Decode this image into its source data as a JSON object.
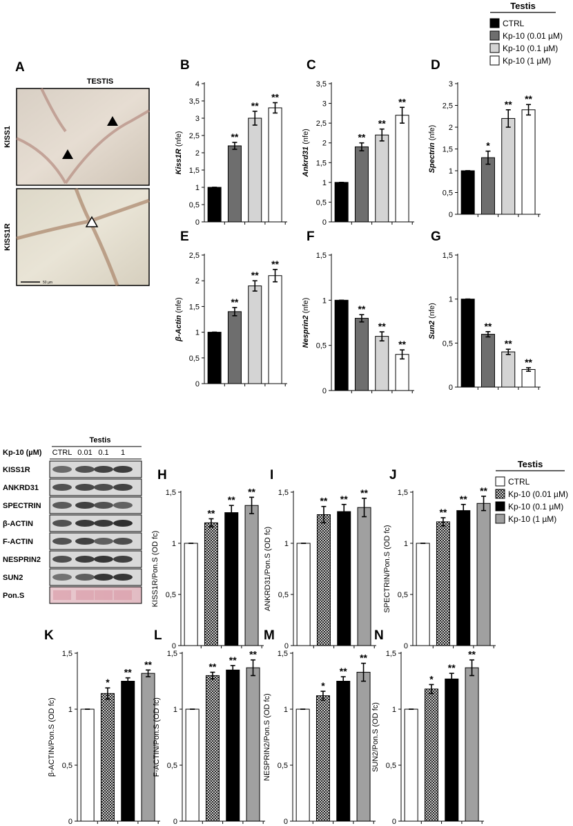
{
  "legend_top": {
    "title": "Testis",
    "entries": [
      {
        "label": "CTRL",
        "color": "#000000"
      },
      {
        "label": "Kp-10 (0.01 µM)",
        "color": "#6e6e6e"
      },
      {
        "label": "Kp-10 (0.1 µM)",
        "color": "#d4d4d4"
      },
      {
        "label": "Kp-10 (1 µM)",
        "color": "#ffffff"
      }
    ]
  },
  "legend_bottom": {
    "title": "Testis",
    "entries": [
      {
        "label": "CTRL",
        "color": "#ffffff",
        "pattern": "none"
      },
      {
        "label": "Kp-10 (0.01 µM)",
        "color": "#ffffff",
        "pattern": "crosshatch"
      },
      {
        "label": "Kp-10 (0.1 µM)",
        "color": "#000000",
        "pattern": "none"
      },
      {
        "label": "Kp-10 (1 µM)",
        "color": "#a0a0a0",
        "pattern": "none"
      }
    ]
  },
  "histology": {
    "letter": "A",
    "title": "TESTIS",
    "row_labels": [
      "KISS1",
      "KISS1R"
    ],
    "scale_text": "50 µm"
  },
  "western_blot": {
    "header": "Testis",
    "treatment_label": "Kp-10 (µM)",
    "lanes": [
      "CTRL",
      "0.01",
      "0.1",
      "1"
    ],
    "rows": [
      "KISS1R",
      "ANKRD31",
      "SPECTRIN",
      "β-ACTIN",
      "F-ACTIN",
      "NESPRIN2",
      "SUN2",
      "Pon.S"
    ]
  },
  "chart_data": [
    {
      "letter": "B",
      "type": "bar",
      "ylabel": "Kiss1R (nfe)",
      "ylabel_italic": "Kiss1R",
      "ylabel_rest": " (nfe)",
      "yticks": [
        "0",
        "0,5",
        "1",
        "1,5",
        "2",
        "2,5",
        "3",
        "3,5",
        "4"
      ],
      "ylim": [
        0,
        4
      ],
      "values": [
        1,
        2.2,
        3.0,
        3.3
      ],
      "errors": [
        0,
        0.1,
        0.2,
        0.15
      ],
      "sig": [
        "",
        "**",
        "**",
        "**"
      ],
      "palette": "top"
    },
    {
      "letter": "C",
      "type": "bar",
      "ylabel": "Ankrd31 (nfe)",
      "ylabel_italic": "Ankrd31",
      "ylabel_rest": " (nfe)",
      "yticks": [
        "0",
        "0,5",
        "1",
        "1,5",
        "2",
        "2,5",
        "3",
        "3,5"
      ],
      "ylim": [
        0,
        3.5
      ],
      "values": [
        1,
        1.9,
        2.2,
        2.7
      ],
      "errors": [
        0,
        0.1,
        0.15,
        0.2
      ],
      "sig": [
        "",
        "**",
        "**",
        "**"
      ],
      "palette": "top"
    },
    {
      "letter": "D",
      "type": "bar",
      "ylabel": "Spectrin (nfe)",
      "ylabel_italic": "Spectrin",
      "ylabel_rest": " (nfe)",
      "yticks": [
        "0",
        "0,5",
        "1",
        "1,5",
        "2",
        "2,5",
        "3"
      ],
      "ylim": [
        0,
        3
      ],
      "values": [
        1,
        1.3,
        2.2,
        2.4
      ],
      "errors": [
        0,
        0.15,
        0.2,
        0.12
      ],
      "sig": [
        "",
        "*",
        "**",
        "**"
      ],
      "palette": "top"
    },
    {
      "letter": "E",
      "type": "bar",
      "ylabel": "β-Actin (nfe)",
      "ylabel_italic": "β-Actin",
      "ylabel_rest": " (nfe)",
      "yticks": [
        "0",
        "0,5",
        "1",
        "1,5",
        "2",
        "2,5"
      ],
      "ylim": [
        0,
        2.5
      ],
      "values": [
        1,
        1.4,
        1.9,
        2.1
      ],
      "errors": [
        0,
        0.08,
        0.1,
        0.12
      ],
      "sig": [
        "",
        "**",
        "**",
        "**"
      ],
      "palette": "top"
    },
    {
      "letter": "F",
      "type": "bar",
      "ylabel": "Nesprin2 (nfe)",
      "ylabel_italic": "Nesprin2",
      "ylabel_rest": " (nfe)",
      "yticks": [
        "0",
        "0,5",
        "1",
        "1,5"
      ],
      "ylim": [
        0,
        1.5
      ],
      "values": [
        1,
        0.8,
        0.6,
        0.4
      ],
      "errors": [
        0,
        0.04,
        0.05,
        0.05
      ],
      "sig": [
        "",
        "**",
        "**",
        "**"
      ],
      "palette": "top"
    },
    {
      "letter": "G",
      "type": "bar",
      "ylabel": "Sun2 (nfe)",
      "ylabel_italic": "Sun2",
      "ylabel_rest": " (nfe)",
      "yticks": [
        "0",
        "0,5",
        "1",
        "1,5"
      ],
      "ylim": [
        0,
        1.5
      ],
      "values": [
        1,
        0.6,
        0.4,
        0.2
      ],
      "errors": [
        0,
        0.03,
        0.03,
        0.02
      ],
      "sig": [
        "",
        "**",
        "**",
        "**"
      ],
      "palette": "top"
    },
    {
      "letter": "H",
      "type": "bar",
      "ylabel": "KISS1R/Pon.S (OD fc)",
      "ylabel_italic": "",
      "ylabel_rest": "KISS1R/Pon.S (OD fc)",
      "yticks": [
        "0",
        "0,5",
        "1",
        "1,5"
      ],
      "ylim": [
        0,
        1.5
      ],
      "values": [
        1,
        1.2,
        1.3,
        1.37
      ],
      "errors": [
        0,
        0.04,
        0.07,
        0.08
      ],
      "sig": [
        "",
        "**",
        "**",
        "**"
      ],
      "palette": "bottom"
    },
    {
      "letter": "I",
      "type": "bar",
      "ylabel": "ANKRD31/Pon.S (OD fc)",
      "ylabel_italic": "",
      "ylabel_rest": "ANKRD31/Pon.S (OD fc)",
      "yticks": [
        "0",
        "0,5",
        "1",
        "1,5"
      ],
      "ylim": [
        0,
        1.5
      ],
      "values": [
        1,
        1.28,
        1.31,
        1.35
      ],
      "errors": [
        0,
        0.08,
        0.07,
        0.09
      ],
      "sig": [
        "",
        "**",
        "**",
        "**"
      ],
      "palette": "bottom"
    },
    {
      "letter": "J",
      "type": "bar",
      "ylabel": "SPECTRIN/Pon.S (OD fc)",
      "ylabel_italic": "",
      "ylabel_rest": "SPECTRIN/Pon.S (OD fc)",
      "yticks": [
        "0",
        "0,5",
        "1",
        "1,5"
      ],
      "ylim": [
        0,
        1.5
      ],
      "values": [
        1,
        1.21,
        1.32,
        1.39
      ],
      "errors": [
        0,
        0.04,
        0.06,
        0.07
      ],
      "sig": [
        "",
        "**",
        "**",
        "**"
      ],
      "palette": "bottom"
    },
    {
      "letter": "K",
      "type": "bar",
      "ylabel": "β-ACTIN/Pon.S (OD fc)",
      "ylabel_italic": "",
      "ylabel_rest": "β-ACTIN/Pon.S (OD fc)",
      "yticks": [
        "0",
        "0,5",
        "1",
        "1,5"
      ],
      "ylim": [
        0,
        1.5
      ],
      "values": [
        1,
        1.14,
        1.25,
        1.32
      ],
      "errors": [
        0,
        0.05,
        0.03,
        0.03
      ],
      "sig": [
        "",
        "*",
        "**",
        "**"
      ],
      "palette": "bottom"
    },
    {
      "letter": "L",
      "type": "bar",
      "ylabel": "F-ACTIN/Pon.S (OD fc)",
      "ylabel_italic": "",
      "ylabel_rest": "F-ACTIN/Pon.S (OD fc)",
      "yticks": [
        "0",
        "0,5",
        "1",
        "1,5"
      ],
      "ylim": [
        0,
        1.5
      ],
      "values": [
        1,
        1.3,
        1.35,
        1.37
      ],
      "errors": [
        0,
        0.03,
        0.04,
        0.07
      ],
      "sig": [
        "",
        "**",
        "**",
        "**"
      ],
      "palette": "bottom"
    },
    {
      "letter": "M",
      "type": "bar",
      "ylabel": "NESPRIN2/Pon.S (OD fc)",
      "ylabel_italic": "",
      "ylabel_rest": "NESPRIN2/Pon.S (OD fc)",
      "yticks": [
        "0",
        "0,5",
        "1",
        "1,5"
      ],
      "ylim": [
        0,
        1.5
      ],
      "values": [
        1,
        1.12,
        1.25,
        1.33
      ],
      "errors": [
        0,
        0.04,
        0.04,
        0.08
      ],
      "sig": [
        "",
        "*",
        "**",
        "**"
      ],
      "palette": "bottom"
    },
    {
      "letter": "N",
      "type": "bar",
      "ylabel": "SUN2/Pon.S (OD fc)",
      "ylabel_italic": "",
      "ylabel_rest": "SUN2/Pon.S (OD fc)",
      "yticks": [
        "0",
        "0,5",
        "1",
        "1,5"
      ],
      "ylim": [
        0,
        1.5
      ],
      "values": [
        1,
        1.18,
        1.27,
        1.37
      ],
      "errors": [
        0,
        0.04,
        0.05,
        0.07
      ],
      "sig": [
        "",
        "*",
        "**",
        "**"
      ],
      "palette": "bottom"
    }
  ]
}
